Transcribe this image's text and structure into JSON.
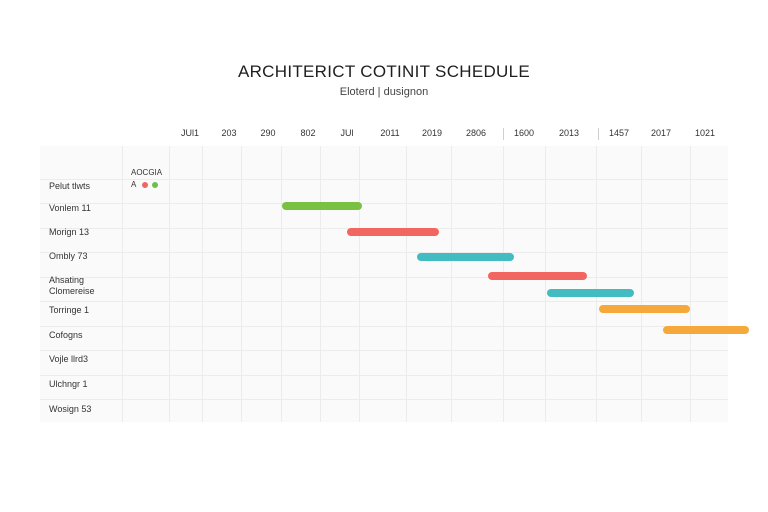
{
  "chart_data": {
    "type": "gantt",
    "title": "ARCHITERICT COTINIT SCHEDULE",
    "subtitle": "Eloterd | dusignon",
    "x_ticks": [
      "JUl1",
      "203",
      "290",
      "802",
      "JUl",
      "2011",
      "2019",
      "2806",
      "1600",
      "2013",
      "1457",
      "2017",
      "1021"
    ],
    "legend_title": "AOCGIA",
    "legend_glyph": "A",
    "legend_colors": [
      "#ef6464",
      "#6cc04a"
    ],
    "rows": [
      {
        "label": "Pelut tlwts"
      },
      {
        "label": "Vonlem 11",
        "start": 2.35,
        "end": 4.35,
        "color": "#7ac143"
      },
      {
        "label": "Morign 13",
        "start": 4.0,
        "end": 6.15,
        "color": "#f26661"
      },
      {
        "label": "Ombly 73",
        "start": 5.65,
        "end": 7.8,
        "color": "#43bcc1"
      },
      {
        "label": "Ahsating Clomereise",
        "start": 7.25,
        "end": 9.35,
        "color": "#f26661"
      },
      {
        "label": "Torringe 1",
        "start": 8.5,
        "end": 10.35,
        "color": "#43bcc1"
      },
      {
        "label": "Cofogns",
        "start": 9.6,
        "end": 11.65,
        "color": "#f6a93b"
      },
      {
        "label": "Vojle llrd3",
        "start": 11.05,
        "end": 13.0,
        "color": "#f6a93b"
      },
      {
        "label": "Ulchngr 1"
      },
      {
        "label": "Wosign 53"
      }
    ]
  }
}
